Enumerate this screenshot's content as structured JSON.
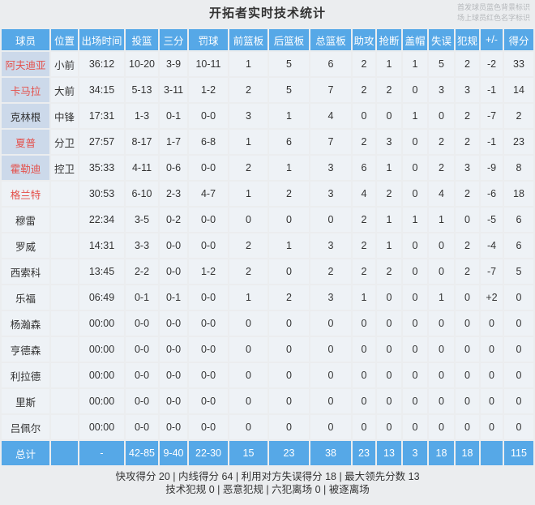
{
  "title": "开拓者实时技术统计",
  "legend": {
    "line1": "首发球员蓝色背景标识",
    "line2": "场上球员红色名字标识"
  },
  "columns": [
    "球员",
    "位置",
    "出场时间",
    "投篮",
    "三分",
    "罚球",
    "前篮板",
    "后篮板",
    "总篮板",
    "助攻",
    "抢断",
    "盖帽",
    "失误",
    "犯规",
    "+/-",
    "得分"
  ],
  "colors": {
    "header_blue": "#56a8e7",
    "starter_bg": "#ccd9ea",
    "oncourt_red": "#e4504b",
    "cell_bg": "#eef2f6",
    "page_bg": "#ebedef"
  },
  "players": [
    {
      "name": "阿夫迪亚",
      "starter": true,
      "on_court": true,
      "position": "小前",
      "time": "36:12",
      "fg": "10-20",
      "three": "3-9",
      "ft": "10-11",
      "oreb": "1",
      "dreb": "5",
      "reb": "6",
      "ast": "2",
      "stl": "1",
      "blk": "1",
      "tov": "5",
      "pf": "2",
      "pm": "-2",
      "pts": "33"
    },
    {
      "name": "卡马拉",
      "starter": true,
      "on_court": true,
      "position": "大前",
      "time": "34:15",
      "fg": "5-13",
      "three": "3-11",
      "ft": "1-2",
      "oreb": "2",
      "dreb": "5",
      "reb": "7",
      "ast": "2",
      "stl": "2",
      "blk": "0",
      "tov": "3",
      "pf": "3",
      "pm": "-1",
      "pts": "14"
    },
    {
      "name": "克林根",
      "starter": true,
      "on_court": false,
      "position": "中锋",
      "time": "17:31",
      "fg": "1-3",
      "three": "0-1",
      "ft": "0-0",
      "oreb": "3",
      "dreb": "1",
      "reb": "4",
      "ast": "0",
      "stl": "0",
      "blk": "1",
      "tov": "0",
      "pf": "2",
      "pm": "-7",
      "pts": "2"
    },
    {
      "name": "夏普",
      "starter": true,
      "on_court": true,
      "position": "分卫",
      "time": "27:57",
      "fg": "8-17",
      "three": "1-7",
      "ft": "6-8",
      "oreb": "1",
      "dreb": "6",
      "reb": "7",
      "ast": "2",
      "stl": "3",
      "blk": "0",
      "tov": "2",
      "pf": "2",
      "pm": "-1",
      "pts": "23"
    },
    {
      "name": "霍勒迪",
      "starter": true,
      "on_court": true,
      "position": "控卫",
      "time": "35:33",
      "fg": "4-11",
      "three": "0-6",
      "ft": "0-0",
      "oreb": "2",
      "dreb": "1",
      "reb": "3",
      "ast": "6",
      "stl": "1",
      "blk": "0",
      "tov": "2",
      "pf": "3",
      "pm": "-9",
      "pts": "8"
    },
    {
      "name": "格兰特",
      "starter": false,
      "on_court": true,
      "position": "",
      "time": "30:53",
      "fg": "6-10",
      "three": "2-3",
      "ft": "4-7",
      "oreb": "1",
      "dreb": "2",
      "reb": "3",
      "ast": "4",
      "stl": "2",
      "blk": "0",
      "tov": "4",
      "pf": "2",
      "pm": "-6",
      "pts": "18"
    },
    {
      "name": "穆雷",
      "starter": false,
      "on_court": false,
      "position": "",
      "time": "22:34",
      "fg": "3-5",
      "three": "0-2",
      "ft": "0-0",
      "oreb": "0",
      "dreb": "0",
      "reb": "0",
      "ast": "2",
      "stl": "1",
      "blk": "1",
      "tov": "1",
      "pf": "0",
      "pm": "-5",
      "pts": "6"
    },
    {
      "name": "罗威",
      "starter": false,
      "on_court": false,
      "position": "",
      "time": "14:31",
      "fg": "3-3",
      "three": "0-0",
      "ft": "0-0",
      "oreb": "2",
      "dreb": "1",
      "reb": "3",
      "ast": "2",
      "stl": "1",
      "blk": "0",
      "tov": "0",
      "pf": "2",
      "pm": "-4",
      "pts": "6"
    },
    {
      "name": "西索科",
      "starter": false,
      "on_court": false,
      "position": "",
      "time": "13:45",
      "fg": "2-2",
      "three": "0-0",
      "ft": "1-2",
      "oreb": "2",
      "dreb": "0",
      "reb": "2",
      "ast": "2",
      "stl": "2",
      "blk": "0",
      "tov": "0",
      "pf": "2",
      "pm": "-7",
      "pts": "5"
    },
    {
      "name": "乐福",
      "starter": false,
      "on_court": false,
      "position": "",
      "time": "06:49",
      "fg": "0-1",
      "three": "0-1",
      "ft": "0-0",
      "oreb": "1",
      "dreb": "2",
      "reb": "3",
      "ast": "1",
      "stl": "0",
      "blk": "0",
      "tov": "1",
      "pf": "0",
      "pm": "+2",
      "pts": "0"
    },
    {
      "name": "杨瀚森",
      "starter": false,
      "on_court": false,
      "position": "",
      "time": "00:00",
      "fg": "0-0",
      "three": "0-0",
      "ft": "0-0",
      "oreb": "0",
      "dreb": "0",
      "reb": "0",
      "ast": "0",
      "stl": "0",
      "blk": "0",
      "tov": "0",
      "pf": "0",
      "pm": "0",
      "pts": "0"
    },
    {
      "name": "亨德森",
      "starter": false,
      "on_court": false,
      "position": "",
      "time": "00:00",
      "fg": "0-0",
      "three": "0-0",
      "ft": "0-0",
      "oreb": "0",
      "dreb": "0",
      "reb": "0",
      "ast": "0",
      "stl": "0",
      "blk": "0",
      "tov": "0",
      "pf": "0",
      "pm": "0",
      "pts": "0"
    },
    {
      "name": "利拉德",
      "starter": false,
      "on_court": false,
      "position": "",
      "time": "00:00",
      "fg": "0-0",
      "three": "0-0",
      "ft": "0-0",
      "oreb": "0",
      "dreb": "0",
      "reb": "0",
      "ast": "0",
      "stl": "0",
      "blk": "0",
      "tov": "0",
      "pf": "0",
      "pm": "0",
      "pts": "0"
    },
    {
      "name": "里斯",
      "starter": false,
      "on_court": false,
      "position": "",
      "time": "00:00",
      "fg": "0-0",
      "three": "0-0",
      "ft": "0-0",
      "oreb": "0",
      "dreb": "0",
      "reb": "0",
      "ast": "0",
      "stl": "0",
      "blk": "0",
      "tov": "0",
      "pf": "0",
      "pm": "0",
      "pts": "0"
    },
    {
      "name": "吕佩尔",
      "starter": false,
      "on_court": false,
      "position": "",
      "time": "00:00",
      "fg": "0-0",
      "three": "0-0",
      "ft": "0-0",
      "oreb": "0",
      "dreb": "0",
      "reb": "0",
      "ast": "0",
      "stl": "0",
      "blk": "0",
      "tov": "0",
      "pf": "0",
      "pm": "0",
      "pts": "0"
    }
  ],
  "total": {
    "name": "总计",
    "position": "",
    "time": "-",
    "fg": "42-85",
    "three": "9-40",
    "ft": "22-30",
    "oreb": "15",
    "dreb": "23",
    "reb": "38",
    "ast": "23",
    "stl": "13",
    "blk": "3",
    "tov": "18",
    "pf": "18",
    "pm": "",
    "pts": "115"
  },
  "footer": {
    "line1": "快攻得分 20 | 内线得分 64 | 利用对方失误得分 18 | 最大领先分数 13",
    "line2": "技术犯规 0 | 恶意犯规  | 六犯离场 0 | 被逐离场"
  }
}
